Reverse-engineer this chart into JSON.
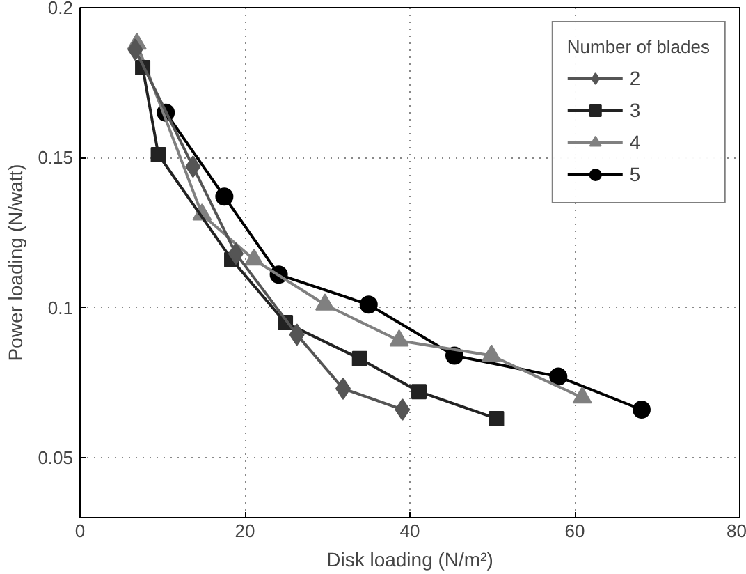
{
  "chart_data": {
    "type": "line",
    "xlabel": "Disk loading (N/m²)",
    "ylabel": "Power loading (N/watt)",
    "legend_title": "Number of blades",
    "legend": "top right",
    "grid": true,
    "line_style": "solid",
    "xlim": [
      0,
      80
    ],
    "ylim": [
      0.03,
      0.2
    ],
    "xticks": [
      0,
      20,
      40,
      60,
      80
    ],
    "yticks": [
      0.05,
      0.1,
      0.15,
      0.2
    ],
    "series": [
      {
        "name": "2",
        "color": "#555555",
        "marker": "diamond",
        "x": [
          6.7,
          13.7,
          18.9,
          26.3,
          31.9,
          39.1
        ],
        "values": [
          0.186,
          0.147,
          0.118,
          0.091,
          0.073,
          0.066
        ]
      },
      {
        "name": "3",
        "color": "#222222",
        "marker": "square",
        "x": [
          7.6,
          9.5,
          18.4,
          24.9,
          33.9,
          41.1,
          50.5
        ],
        "values": [
          0.18,
          0.151,
          0.116,
          0.095,
          0.083,
          0.072,
          0.063
        ]
      },
      {
        "name": "4",
        "color": "#808080",
        "marker": "triangle",
        "x": [
          6.9,
          14.8,
          21.1,
          29.7,
          38.7,
          49.9,
          60.9
        ],
        "values": [
          0.188,
          0.131,
          0.116,
          0.101,
          0.089,
          0.084,
          0.07
        ]
      },
      {
        "name": "5",
        "color": "#000000",
        "marker": "circle",
        "x": [
          10.4,
          17.5,
          24.1,
          35,
          45.4,
          58,
          68.1
        ],
        "values": [
          0.165,
          0.137,
          0.111,
          0.101,
          0.084,
          0.077,
          0.066
        ]
      }
    ]
  }
}
